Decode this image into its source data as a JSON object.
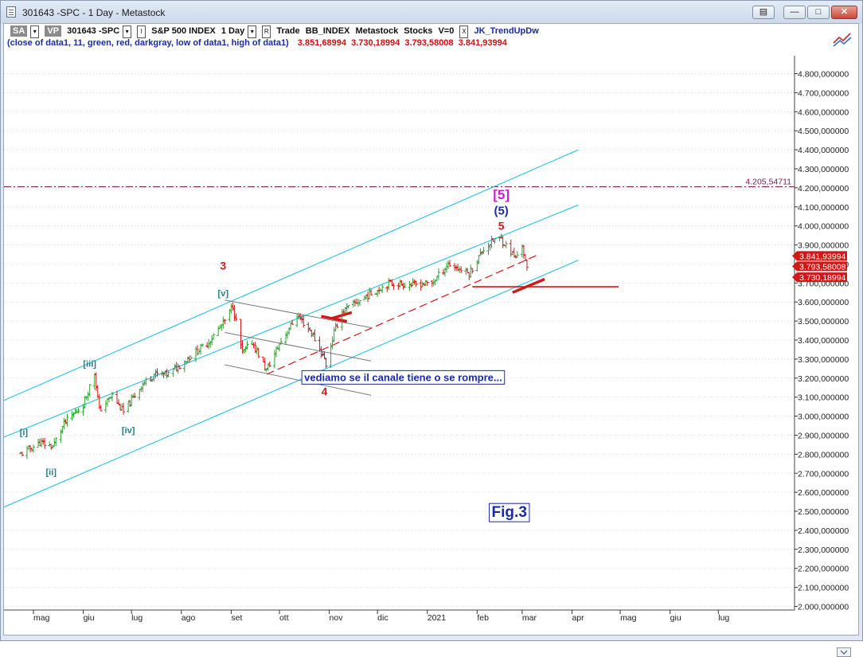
{
  "window": {
    "title": "301643 -SPC - 1 Day - Metastock"
  },
  "toolbar": {
    "sa_label": "SA",
    "vp_label": "VP",
    "symbol": "301643 -SPC",
    "i_btn": "I",
    "instrument": "S&P 500 INDEX",
    "period": "1 Day",
    "r_btn": "R",
    "trade": "Trade",
    "source": "BB_INDEX",
    "vendor": "Metastock",
    "kind": "Stocks",
    "v_value": "V=0",
    "x_btn": "X",
    "indicator": "JK_TrendUpDw"
  },
  "legend": {
    "formula": "(close of data1,  11,  green,  red,  darkgray,  low of data1,  high of data1)",
    "values": [
      "3.851,68994",
      "3.730,18994",
      "3.793,58008",
      "3.841,93994"
    ]
  },
  "colors": {
    "up_bar": "#2fa02f",
    "down_bar": "#d01818",
    "channel": "#33c6e6",
    "gray_channel": "#6a6a6a",
    "trend_red": "#d01818",
    "resistance": "#7a1a5a",
    "annotation_blue": "#1a2aa8",
    "wave_teal": "#217f88",
    "magenta": "#d01bd0"
  },
  "chart_data": {
    "type": "ohlc",
    "title": "",
    "y_axis": {
      "ylim": [
        2000,
        4850
      ],
      "ticks": [
        "4.800,000000",
        "4.700,000000",
        "4.600,000000",
        "4.500,000000",
        "4.400,000000",
        "4.300,000000",
        "4.200,000000",
        "4.100,000000",
        "4.000,000000",
        "3.900,000000",
        "3.800,000000",
        "3.700,000000",
        "3.600,000000",
        "3.500,000000",
        "3.400,000000",
        "3.300,000000",
        "3.200,000000",
        "3.100,000000",
        "3.000,000000",
        "2.900,000000",
        "2.800,000000",
        "2.700,000000",
        "2.600,000000",
        "2.500,000000",
        "2.400,000000",
        "2.300,000000",
        "2.200,000000",
        "2.100,000000",
        "2.000,000000"
      ],
      "tick_values": [
        4800,
        4700,
        4600,
        4500,
        4400,
        4300,
        4200,
        4100,
        4000,
        3900,
        3800,
        3700,
        3600,
        3500,
        3400,
        3300,
        3200,
        3100,
        3000,
        2900,
        2800,
        2700,
        2600,
        2500,
        2400,
        2300,
        2200,
        2100,
        2000
      ]
    },
    "x_axis": {
      "months": [
        "mag",
        "giu",
        "lug",
        "ago",
        "set",
        "ott",
        "nov",
        "dic",
        "2021",
        "feb",
        "mar",
        "apr",
        "mag",
        "giu",
        "lug"
      ],
      "month_starts": [
        "2020-05-01",
        "2020-06-01",
        "2020-07-01",
        "2020-08-01",
        "2020-09-01",
        "2020-10-01",
        "2020-11-01",
        "2020-12-01",
        "2021-01-01",
        "2021-02-01",
        "2021-03-01",
        "2021-04-01",
        "2021-05-01",
        "2021-06-01",
        "2021-07-01"
      ]
    },
    "series": [
      {
        "style": "ohlc-bars",
        "date_range": [
          "2020-04-23",
          "2021-03-04"
        ],
        "close_path": [
          [
            "2020-04-23",
            2800
          ],
          [
            "2020-05-05",
            2860
          ],
          [
            "2020-05-13",
            2840
          ],
          [
            "2020-05-20",
            2960
          ],
          [
            "2020-06-01",
            3060
          ],
          [
            "2020-06-08",
            3230
          ],
          [
            "2020-06-11",
            3030
          ],
          [
            "2020-06-19",
            3110
          ],
          [
            "2020-06-26",
            3020
          ],
          [
            "2020-07-07",
            3160
          ],
          [
            "2020-07-15",
            3220
          ],
          [
            "2020-07-24",
            3220
          ],
          [
            "2020-08-03",
            3290
          ],
          [
            "2020-08-18",
            3390
          ],
          [
            "2020-08-28",
            3500
          ],
          [
            "2020-09-02",
            3580
          ],
          [
            "2020-09-08",
            3330
          ],
          [
            "2020-09-14",
            3390
          ],
          [
            "2020-09-23",
            3240
          ],
          [
            "2020-10-01",
            3380
          ],
          [
            "2020-10-12",
            3530
          ],
          [
            "2020-10-21",
            3440
          ],
          [
            "2020-10-29",
            3300
          ],
          [
            "2020-10-30",
            3270
          ],
          [
            "2020-11-04",
            3440
          ],
          [
            "2020-11-09",
            3550
          ],
          [
            "2020-11-24",
            3630
          ],
          [
            "2020-12-08",
            3700
          ],
          [
            "2020-12-21",
            3690
          ],
          [
            "2021-01-04",
            3700
          ],
          [
            "2021-01-14",
            3800
          ],
          [
            "2021-01-27",
            3750
          ],
          [
            "2021-02-05",
            3880
          ],
          [
            "2021-02-12",
            3930
          ],
          [
            "2021-02-16",
            3930
          ],
          [
            "2021-02-25",
            3830
          ],
          [
            "2021-03-01",
            3900
          ],
          [
            "2021-03-04",
            3768
          ]
        ]
      }
    ],
    "last_values": [
      "3.841,93994",
      "3.793,58008",
      "3.730,18994"
    ],
    "resistance": {
      "value": 4205.54711,
      "label": "4.205,54711"
    },
    "support_line": {
      "value": 3680,
      "from": "2021-01-29",
      "to": "2021-04-30"
    },
    "channel": [
      {
        "from": [
          "2020-04-01",
          3040
        ],
        "to": [
          "2021-04-05",
          4400
        ]
      },
      {
        "from": [
          "2020-04-01",
          2850
        ],
        "to": [
          "2021-04-05",
          4110
        ]
      },
      {
        "from": [
          "2020-04-01",
          2480
        ],
        "to": [
          "2021-04-05",
          3820
        ]
      }
    ],
    "gray_channel": [
      {
        "from": [
          "2020-08-28",
          3610
        ],
        "to": [
          "2020-11-27",
          3465
        ]
      },
      {
        "from": [
          "2020-08-28",
          3440
        ],
        "to": [
          "2020-11-27",
          3290
        ]
      },
      {
        "from": [
          "2020-08-28",
          3270
        ],
        "to": [
          "2020-11-27",
          3110
        ]
      }
    ],
    "dashed_trend": {
      "from": [
        "2020-09-23",
        3220
      ],
      "to": [
        "2021-03-10",
        3845
      ]
    },
    "red_segments": [
      {
        "from": [
          "2020-10-27",
          3525
        ],
        "to": [
          "2020-11-12",
          3498
        ]
      },
      {
        "from": [
          "2020-11-03",
          3515
        ],
        "to": [
          "2020-11-15",
          3545
        ]
      },
      {
        "from": [
          "2021-02-23",
          3650
        ],
        "to": [
          "2021-03-15",
          3720
        ]
      }
    ],
    "wave_labels": [
      {
        "text": "[i]",
        "x": "2020-04-25",
        "y": 2900,
        "style": "teal"
      },
      {
        "text": "[ii]",
        "x": "2020-05-12",
        "y": 2690,
        "style": "teal"
      },
      {
        "text": "[iii]",
        "x": "2020-06-05",
        "y": 3260,
        "style": "teal"
      },
      {
        "text": "[iv]",
        "x": "2020-06-29",
        "y": 2910,
        "style": "teal"
      },
      {
        "text": "[v]",
        "x": "2020-08-27",
        "y": 3630,
        "style": "teal"
      },
      {
        "text": "3",
        "x": "2020-08-27",
        "y": 3770,
        "style": "red"
      },
      {
        "text": "4",
        "x": "2020-10-29",
        "y": 3110,
        "style": "red"
      },
      {
        "text": "5",
        "x": "2021-02-16",
        "y": 3980,
        "style": "red"
      },
      {
        "text": "(5)",
        "x": "2021-02-16",
        "y": 4060,
        "style": "blue"
      },
      {
        "text": "[5]",
        "x": "2021-02-16",
        "y": 4140,
        "style": "magenta"
      }
    ],
    "annotations": [
      {
        "text": "vediamo se il canale tiene o se rompre...",
        "x": "2020-12-17",
        "y": 3185
      },
      {
        "text": "Fig.3",
        "x": "2021-02-21",
        "y": 2470
      }
    ]
  }
}
